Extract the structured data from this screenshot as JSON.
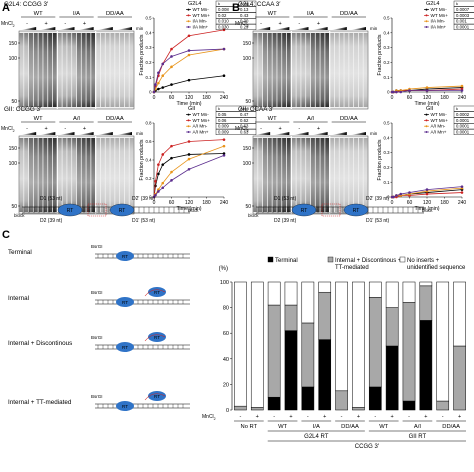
{
  "panels": {
    "A": {
      "letter": "A",
      "top": {
        "title": "G2L4: CCGG 3′",
        "groups": [
          "WT",
          "I/A",
          "DD/AA"
        ],
        "mncl": "MnCl",
        "signs": [
          "-",
          "+",
          "-",
          "+"
        ],
        "ladder": [
          "150",
          "100",
          "50"
        ],
        "min": "min",
        "legend_title": "G2L4",
        "legend_items": [
          "WT Mn-",
          "WT Mn+",
          "I/A Mn-",
          "I/A Mn+"
        ],
        "table_headers": [
          "k",
          "Ampl"
        ],
        "table_rows": [
          [
            "0.008",
            "0.13"
          ],
          [
            "0.02",
            "0.43"
          ],
          [
            "0.010",
            "0.30"
          ],
          [
            "0.030",
            "0.29"
          ]
        ]
      },
      "bottom": {
        "title": "GII: CCGG 3′",
        "groups": [
          "WT",
          "A/I",
          "DD/AA"
        ],
        "mncl": "MnCl",
        "signs": [
          "-",
          "+",
          "-",
          "+"
        ],
        "ladder": [
          "150",
          "100",
          "50"
        ],
        "min": "min",
        "legend_title": "GII",
        "legend_items": [
          "WT Mn-",
          "WT Mn+",
          "A/I Mn-",
          "A/I Mn+"
        ],
        "table_headers": [
          "k",
          "Ampl"
        ],
        "table_rows": [
          [
            "0.05",
            "0.47"
          ],
          [
            "0.06",
            "0.62"
          ],
          [
            "0.009",
            "0.63"
          ],
          [
            "0.009",
            "0.63"
          ]
        ]
      },
      "schematic": {
        "d1": "D1 (53 nt)",
        "d2": "D2 (39 nt)",
        "d2p": "D2′ (39 nt)",
        "d1p": "D1′ (53 nt)",
        "block": "block",
        "rt": "RT"
      }
    },
    "B": {
      "letter": "B",
      "top": {
        "title": "G2L4: CCAA 3′",
        "groups": [
          "WT",
          "I/A",
          "DD/AA"
        ],
        "mncl": "MnCl",
        "signs": [
          "-",
          "+",
          "-",
          "+"
        ],
        "ladder": [
          "150",
          "100",
          "50"
        ],
        "min": "min",
        "legend_title": "G2L4",
        "legend_items": [
          "WT Mn-",
          "WT Mn+",
          "I/A Mn-",
          "I/A Mn+"
        ],
        "table_headers": [
          "k",
          "Ampl"
        ],
        "table_rows": [
          [
            "0.0007",
            "0.05"
          ],
          [
            "0.0003",
            "(0.02)"
          ],
          [
            "0.001",
            "0.02"
          ],
          [
            "0.0001",
            "(0.04)"
          ]
        ]
      },
      "bottom": {
        "title": "GII: CCAA 3′",
        "groups": [
          "WT",
          "A/I",
          "DD/AA"
        ],
        "mncl": "MnCl",
        "signs": [
          "-",
          "+",
          "-",
          "+"
        ],
        "ladder": [
          "150",
          "100",
          "50"
        ],
        "min": "min",
        "legend_title": "GII",
        "legend_items": [
          "WT Mn-",
          "WT Mn+",
          "A/I Mn-",
          "A/I Mn+"
        ],
        "table_headers": [
          "k",
          "Ampl"
        ],
        "table_rows": [
          [
            "0.0002",
            "(0.54)"
          ],
          [
            "0.0001",
            "(0.26)"
          ],
          [
            "0.0001",
            "(0.54)"
          ],
          [
            "0.0001",
            "(0.54)"
          ]
        ]
      },
      "schematic": {
        "d1": "D1 (53 nt)",
        "d2": "D2 (39 nt)",
        "d2p": "D2′ (39 nt)",
        "d1p": "D1′ (53 nt)",
        "block": "block",
        "rt": "RT"
      }
    },
    "C": {
      "letter": "C",
      "diagrams": [
        "Terminal",
        "Internal",
        "Internal + Discontinous",
        "Internal + TT-mediated"
      ],
      "site": "BsrGI",
      "rt": "RT",
      "legend": [
        "Terminal",
        "Internal + Discontinous + TT-mediated",
        "No inserts + unidentified sequence"
      ],
      "yaxis_label": "(%)",
      "yticks": [
        "100",
        "80",
        "60",
        "40",
        "20",
        "0"
      ],
      "mncl_label": "MnCl",
      "signs": [
        "-",
        "+",
        "-",
        "+",
        "-",
        "+",
        "-",
        "+",
        "-",
        "+",
        "-",
        "+",
        "-",
        "+"
      ],
      "group_labels": [
        "No RT",
        "WT",
        "I/A",
        "DD/AA",
        "WT",
        "A/I",
        "DD/AA"
      ],
      "super_labels": [
        "G2L4 RT",
        "GII RT"
      ],
      "bottom_label": "CCGG 3′"
    }
  },
  "chart_data": [
    {
      "type": "line",
      "title": "G2L4",
      "xlabel": "Time (min)",
      "ylabel": "Fraction products",
      "xlim": [
        0,
        240
      ],
      "ylim": [
        0,
        0.5
      ],
      "xticks": [
        0,
        60,
        120,
        180,
        240
      ],
      "yticks": [
        0,
        0.1,
        0.2,
        0.3,
        0.4,
        0.5
      ],
      "x": [
        0,
        5,
        15,
        30,
        60,
        120,
        240
      ],
      "series": [
        {
          "name": "WT Mn-",
          "color": "#000000",
          "values": [
            0,
            0.01,
            0.02,
            0.03,
            0.05,
            0.08,
            0.11
          ]
        },
        {
          "name": "WT Mn+",
          "color": "#cc2222",
          "values": [
            0,
            0.04,
            0.11,
            0.19,
            0.29,
            0.38,
            0.42
          ]
        },
        {
          "name": "I/A Mn-",
          "color": "#e8941a",
          "values": [
            0,
            0.02,
            0.06,
            0.11,
            0.17,
            0.25,
            0.29
          ]
        },
        {
          "name": "I/A Mn+",
          "color": "#5b2d8e",
          "values": [
            0,
            0.05,
            0.13,
            0.19,
            0.24,
            0.28,
            0.29
          ]
        }
      ]
    },
    {
      "type": "line",
      "title": "GII",
      "xlabel": "Time (min)",
      "ylabel": "Fraction products",
      "xlim": [
        0,
        240
      ],
      "ylim": [
        0,
        0.8
      ],
      "xticks": [
        0,
        60,
        120,
        180,
        240
      ],
      "yticks": [
        0,
        0.2,
        0.4,
        0.6,
        0.8
      ],
      "x": [
        0,
        5,
        15,
        30,
        60,
        120,
        240
      ],
      "series": [
        {
          "name": "WT Mn-",
          "color": "#000000",
          "values": [
            0,
            0.12,
            0.25,
            0.35,
            0.42,
            0.46,
            0.47
          ]
        },
        {
          "name": "WT Mn+",
          "color": "#cc2222",
          "values": [
            0,
            0.17,
            0.35,
            0.46,
            0.55,
            0.6,
            0.62
          ]
        },
        {
          "name": "A/I Mn-",
          "color": "#e8941a",
          "values": [
            0,
            0.03,
            0.08,
            0.15,
            0.27,
            0.41,
            0.55
          ]
        },
        {
          "name": "A/I Mn+",
          "color": "#5b2d8e",
          "values": [
            0,
            0.02,
            0.06,
            0.1,
            0.18,
            0.3,
            0.45
          ]
        }
      ]
    },
    {
      "type": "line",
      "title": "G2L4",
      "xlabel": "Time (min)",
      "ylabel": "Fraction products",
      "xlim": [
        0,
        240
      ],
      "ylim": [
        0,
        0.5
      ],
      "xticks": [
        0,
        60,
        120,
        180,
        240
      ],
      "yticks": [
        0,
        0.1,
        0.2,
        0.3,
        0.4,
        0.5
      ],
      "x": [
        0,
        5,
        15,
        30,
        60,
        120,
        240
      ],
      "series": [
        {
          "name": "WT Mn-",
          "color": "#000000",
          "values": [
            0,
            0.0,
            0.01,
            0.01,
            0.01,
            0.02,
            0.03
          ]
        },
        {
          "name": "WT Mn+",
          "color": "#cc2222",
          "values": [
            0,
            0.0,
            0.0,
            0.01,
            0.01,
            0.01,
            0.02
          ]
        },
        {
          "name": "I/A Mn-",
          "color": "#e8941a",
          "values": [
            0,
            0.0,
            0.01,
            0.01,
            0.02,
            0.03,
            0.04
          ]
        },
        {
          "name": "I/A Mn+",
          "color": "#5b2d8e",
          "values": [
            0,
            0.0,
            0.0,
            0.0,
            0.01,
            0.01,
            0.01
          ]
        }
      ]
    },
    {
      "type": "line",
      "title": "GII",
      "xlabel": "Time (min)",
      "ylabel": "Fraction products",
      "xlim": [
        0,
        240
      ],
      "ylim": [
        0,
        0.5
      ],
      "xticks": [
        0,
        60,
        120,
        180,
        240
      ],
      "yticks": [
        0,
        0.1,
        0.2,
        0.3,
        0.4,
        0.5
      ],
      "x": [
        0,
        5,
        15,
        30,
        60,
        120,
        240
      ],
      "series": [
        {
          "name": "WT Mn-",
          "color": "#000000",
          "values": [
            0,
            0.0,
            0.01,
            0.01,
            0.02,
            0.03,
            0.05
          ]
        },
        {
          "name": "WT Mn+",
          "color": "#cc2222",
          "values": [
            0,
            0.0,
            0.0,
            0.01,
            0.01,
            0.02,
            0.03
          ]
        },
        {
          "name": "A/I Mn-",
          "color": "#e8941a",
          "values": [
            0,
            0.0,
            0.01,
            0.01,
            0.02,
            0.04,
            0.06
          ]
        },
        {
          "name": "A/I Mn+",
          "color": "#5b2d8e",
          "values": [
            0,
            0.0,
            0.01,
            0.02,
            0.03,
            0.05,
            0.07
          ]
        }
      ]
    },
    {
      "type": "bar",
      "stacked": true,
      "ylabel": "(%)",
      "ylim": [
        0,
        100
      ],
      "yticks": [
        0,
        20,
        40,
        60,
        80,
        100
      ],
      "categories": [
        "No RT -",
        "No RT +",
        "G2L4 WT -",
        "G2L4 WT +",
        "G2L4 I/A -",
        "G2L4 I/A +",
        "G2L4 DD/AA -",
        "G2L4 DD/AA +",
        "GII WT -",
        "GII WT +",
        "GII A/I -",
        "GII A/I +",
        "GII DD/AA -",
        "GII DD/AA +"
      ],
      "series": [
        {
          "name": "Terminal",
          "color": "#000000",
          "values": [
            0,
            0,
            10,
            62,
            18,
            55,
            0,
            0,
            18,
            50,
            7,
            70,
            0,
            0
          ]
        },
        {
          "name": "Internal + Discontinous + TT-mediated",
          "color": "#a8a8a8",
          "values": [
            3,
            2,
            72,
            20,
            50,
            37,
            15,
            2,
            70,
            30,
            77,
            27,
            7,
            50
          ]
        },
        {
          "name": "No inserts + unidentified sequence",
          "color": "#ffffff",
          "values": [
            97,
            98,
            18,
            18,
            32,
            8,
            85,
            98,
            12,
            20,
            16,
            3,
            93,
            50
          ]
        }
      ],
      "legend_position": "top"
    }
  ]
}
